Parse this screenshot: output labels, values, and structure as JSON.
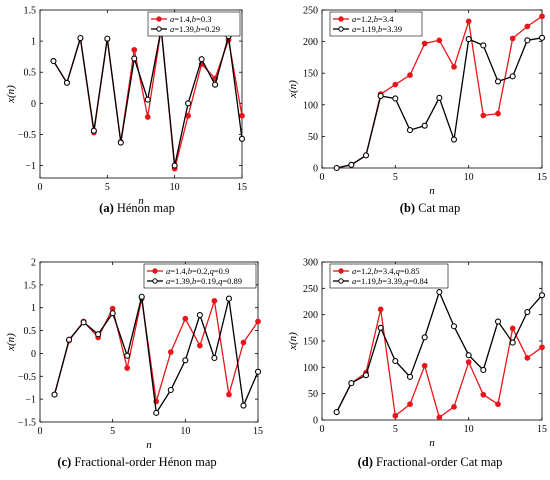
{
  "figure": {
    "background": "#ffffff",
    "colors": {
      "series_a": "#e8161b",
      "series_b": "#000000"
    }
  },
  "chart_data": [
    {
      "id": "henon",
      "type": "line",
      "caption_tag": "(a)",
      "caption_text": "Hénon map",
      "xlabel": "n",
      "ylabel": "x(n)",
      "xlim": [
        0,
        15
      ],
      "ylim": [
        -1.2,
        1.5
      ],
      "xticks": [
        0,
        5,
        10,
        15
      ],
      "yticks": [
        -1,
        -0.5,
        0,
        0.5,
        1,
        1.5
      ],
      "legend_position": "top-right",
      "x": [
        1,
        2,
        3,
        4,
        5,
        6,
        7,
        8,
        9,
        10,
        11,
        12,
        13,
        14,
        15
      ],
      "series": [
        {
          "name": "a=1.4,b=0.3",
          "color": "#e8161b",
          "values": [
            0.68,
            0.33,
            1.04,
            -0.47,
            1.03,
            -0.62,
            0.86,
            -0.22,
            1.2,
            -1.05,
            -0.2,
            0.63,
            0.4,
            1.02,
            -0.2
          ]
        },
        {
          "name": "a=1.39,b=0.29",
          "color": "#000000",
          "values": [
            0.68,
            0.33,
            1.05,
            -0.44,
            1.04,
            -0.63,
            0.72,
            0.06,
            1.2,
            -1.0,
            0.0,
            0.71,
            0.3,
            1.08,
            -0.57
          ]
        }
      ]
    },
    {
      "id": "cat",
      "type": "line",
      "caption_tag": "(b)",
      "caption_text": "Cat map",
      "xlabel": "n",
      "ylabel": "x(n)",
      "xlim": [
        0,
        15
      ],
      "ylim": [
        0,
        250
      ],
      "xticks": [
        0,
        5,
        10,
        15
      ],
      "yticks": [
        0,
        50,
        100,
        150,
        200,
        250
      ],
      "legend_position": "top-left",
      "x": [
        1,
        2,
        3,
        4,
        5,
        6,
        7,
        8,
        9,
        10,
        11,
        12,
        13,
        14,
        15
      ],
      "series": [
        {
          "name": "a=1.2,b=3.4",
          "color": "#e8161b",
          "values": [
            0,
            5,
            20,
            117,
            132,
            147,
            197,
            202,
            160,
            232,
            83,
            86,
            205,
            224,
            240
          ]
        },
        {
          "name": "a=1.19,b=3.39",
          "color": "#000000",
          "values": [
            0,
            5,
            20,
            114,
            110,
            60,
            67,
            111,
            45,
            204,
            194,
            137,
            145,
            202,
            206
          ]
        }
      ]
    },
    {
      "id": "frac-henon",
      "type": "line",
      "caption_tag": "(c)",
      "caption_text": "Fractional-order Hénon map",
      "xlabel": "n",
      "ylabel": "x(n)",
      "xlim": [
        0,
        15
      ],
      "ylim": [
        -1.5,
        2
      ],
      "xticks": [
        0,
        5,
        10,
        15
      ],
      "yticks": [
        -1.5,
        -1,
        -0.5,
        0,
        0.5,
        1,
        1.5,
        2
      ],
      "legend_position": "top-right",
      "x": [
        1,
        2,
        3,
        4,
        5,
        6,
        7,
        8,
        9,
        10,
        11,
        12,
        13,
        14,
        15
      ],
      "series": [
        {
          "name": "a=1.4,b=0.2,q=0.9",
          "color": "#e8161b",
          "values": [
            -0.9,
            0.28,
            0.7,
            0.35,
            0.98,
            -0.32,
            1.2,
            -1.05,
            0.03,
            0.76,
            0.17,
            1.15,
            -0.9,
            0.24,
            0.7
          ]
        },
        {
          "name": "a=1.39,b=0.19,q=0.89",
          "color": "#000000",
          "values": [
            -0.9,
            0.3,
            0.68,
            0.42,
            0.88,
            -0.05,
            1.24,
            -1.3,
            -0.8,
            -0.15,
            0.84,
            -0.1,
            1.2,
            -1.14,
            -0.4
          ]
        }
      ]
    },
    {
      "id": "frac-cat",
      "type": "line",
      "caption_tag": "(d)",
      "caption_text": "Fractional-order Cat map",
      "xlabel": "n",
      "ylabel": "x(n)",
      "xlim": [
        0,
        15
      ],
      "ylim": [
        0,
        300
      ],
      "xticks": [
        0,
        5,
        10,
        15
      ],
      "yticks": [
        0,
        50,
        100,
        150,
        200,
        250,
        300
      ],
      "legend_position": "top-left",
      "x": [
        1,
        2,
        3,
        4,
        5,
        6,
        7,
        8,
        9,
        10,
        11,
        12,
        13,
        14,
        15
      ],
      "series": [
        {
          "name": "a=1.2,b=3.4,q=0.85",
          "color": "#e8161b",
          "values": [
            15,
            70,
            90,
            210,
            8,
            30,
            103,
            5,
            25,
            110,
            48,
            30,
            174,
            118,
            138
          ]
        },
        {
          "name": "a=1.19,b=3.39,q=0.84",
          "color": "#000000",
          "values": [
            15,
            70,
            85,
            175,
            112,
            82,
            157,
            243,
            178,
            123,
            95,
            187,
            147,
            205,
            237
          ]
        }
      ]
    }
  ]
}
